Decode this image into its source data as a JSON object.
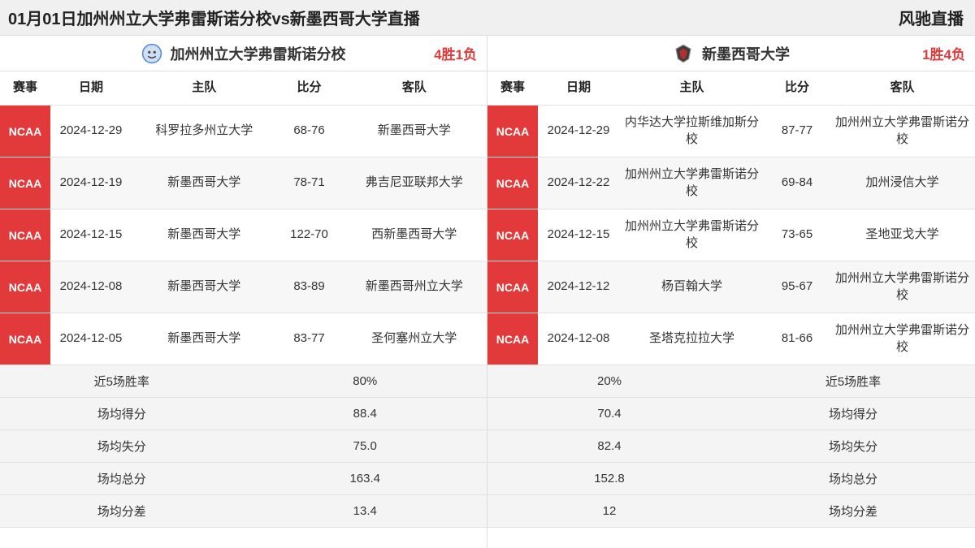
{
  "colors": {
    "accent": "#e23a3a",
    "header_bg": "#f0f0f0",
    "row_alt_bg": "#f7f7f7",
    "summary_bg": "#f4f4f4",
    "border": "#e2e2e2",
    "text": "#333333"
  },
  "header": {
    "title": "01月01日加州州立大学弗雷斯诺分校vs新墨西哥大学直播",
    "brand": "风驰直播"
  },
  "columns": {
    "event": "赛事",
    "date": "日期",
    "home": "主队",
    "score": "比分",
    "away": "客队"
  },
  "summary_labels": {
    "win_rate": "近5场胜率",
    "avg_points": "场均得分",
    "avg_conceded": "场均失分",
    "avg_total": "场均总分",
    "avg_diff": "场均分差"
  },
  "left": {
    "team_name": "加州州立大学弗雷斯诺分校",
    "record": "4胜1负",
    "logo": "bulldog",
    "rows": [
      {
        "event": "NCAA",
        "date": "2024-12-29",
        "home": "科罗拉多州立大学",
        "score": "68-76",
        "away": "新墨西哥大学"
      },
      {
        "event": "NCAA",
        "date": "2024-12-19",
        "home": "新墨西哥大学",
        "score": "78-71",
        "away": "弗吉尼亚联邦大学"
      },
      {
        "event": "NCAA",
        "date": "2024-12-15",
        "home": "新墨西哥大学",
        "score": "122-70",
        "away": "西新墨西哥大学"
      },
      {
        "event": "NCAA",
        "date": "2024-12-08",
        "home": "新墨西哥大学",
        "score": "83-89",
        "away": "新墨西哥州立大学"
      },
      {
        "event": "NCAA",
        "date": "2024-12-05",
        "home": "新墨西哥大学",
        "score": "83-77",
        "away": "圣何塞州立大学"
      }
    ],
    "summary": {
      "win_rate": "80%",
      "avg_points": "88.4",
      "avg_conceded": "75.0",
      "avg_total": "163.4",
      "avg_diff": "13.4"
    }
  },
  "right": {
    "team_name": "新墨西哥大学",
    "record": "1胜4负",
    "logo": "lobo",
    "rows": [
      {
        "event": "NCAA",
        "date": "2024-12-29",
        "home": "内华达大学拉斯维加斯分校",
        "score": "87-77",
        "away": "加州州立大学弗雷斯诺分校"
      },
      {
        "event": "NCAA",
        "date": "2024-12-22",
        "home": "加州州立大学弗雷斯诺分校",
        "score": "69-84",
        "away": "加州浸信大学"
      },
      {
        "event": "NCAA",
        "date": "2024-12-15",
        "home": "加州州立大学弗雷斯诺分校",
        "score": "73-65",
        "away": "圣地亚戈大学"
      },
      {
        "event": "NCAA",
        "date": "2024-12-12",
        "home": "杨百翰大学",
        "score": "95-67",
        "away": "加州州立大学弗雷斯诺分校"
      },
      {
        "event": "NCAA",
        "date": "2024-12-08",
        "home": "圣塔克拉拉大学",
        "score": "81-66",
        "away": "加州州立大学弗雷斯诺分校"
      }
    ],
    "summary": {
      "win_rate": "20%",
      "avg_points": "70.4",
      "avg_conceded": "82.4",
      "avg_total": "152.8",
      "avg_diff": "12"
    }
  }
}
